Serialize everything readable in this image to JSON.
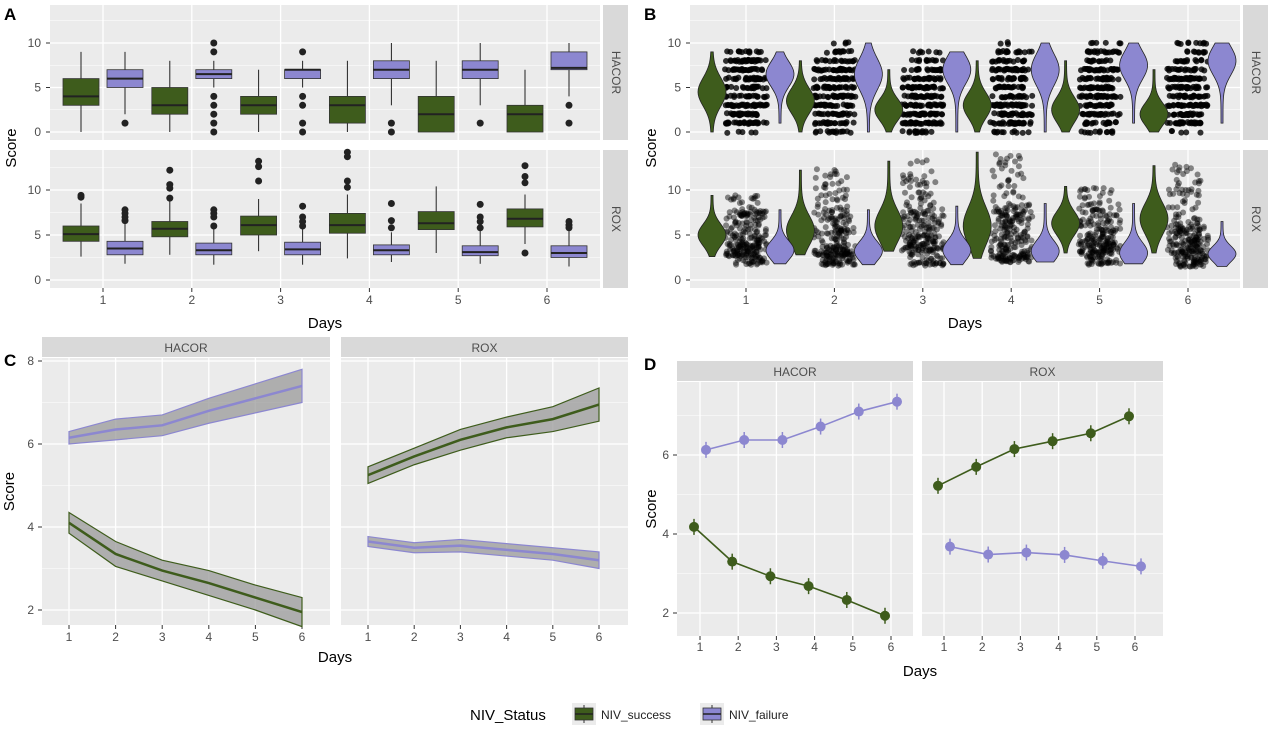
{
  "colors": {
    "success": "#3e5c1c",
    "failure": "#8c87d0",
    "panel_bg": "#ebebeb",
    "strip_bg": "#d9d9d9",
    "grid": "#ffffff"
  },
  "panel_labels": [
    "A",
    "B",
    "C",
    "D"
  ],
  "legend": {
    "title": "NIV_Status",
    "items": [
      "NIV_success",
      "NIV_failure"
    ]
  },
  "chart_data": [
    {
      "panel": "A",
      "type": "boxplot",
      "xlabel": "Days",
      "ylabel": "Score",
      "categories": [
        "1",
        "2",
        "3",
        "4",
        "5",
        "6"
      ],
      "facets": [
        {
          "name": "HACOR",
          "yticks": [
            "0",
            "5",
            "10"
          ],
          "ylim": [
            -0.5,
            14.5
          ],
          "series": [
            {
              "name": "NIV_success",
              "boxes": [
                {
                  "q1": 3,
                  "median": 4,
                  "q3": 6,
                  "min": 0,
                  "max": 9,
                  "outliers": []
                },
                {
                  "q1": 2,
                  "median": 3,
                  "q3": 5,
                  "min": 0,
                  "max": 8,
                  "outliers": []
                },
                {
                  "q1": 2,
                  "median": 3,
                  "q3": 4,
                  "min": 0,
                  "max": 7,
                  "outliers": []
                },
                {
                  "q1": 1,
                  "median": 3,
                  "q3": 4,
                  "min": 0,
                  "max": 8,
                  "outliers": []
                },
                {
                  "q1": 0,
                  "median": 2,
                  "q3": 4,
                  "min": 0,
                  "max": 8,
                  "outliers": []
                },
                {
                  "q1": 0,
                  "median": 2,
                  "q3": 3,
                  "min": 0,
                  "max": 7,
                  "outliers": []
                }
              ]
            },
            {
              "name": "NIV_failure",
              "boxes": [
                {
                  "q1": 5,
                  "median": 6,
                  "q3": 7,
                  "min": 2,
                  "max": 9,
                  "outliers": [
                    1
                  ]
                },
                {
                  "q1": 6,
                  "median": 6.5,
                  "q3": 7,
                  "min": 5,
                  "max": 8,
                  "outliers": [
                    0,
                    1,
                    2,
                    3,
                    4,
                    9,
                    10
                  ]
                },
                {
                  "q1": 6,
                  "median": 7,
                  "q3": 7,
                  "min": 5,
                  "max": 8,
                  "outliers": [
                    0,
                    1,
                    3,
                    4,
                    9
                  ]
                },
                {
                  "q1": 6,
                  "median": 7,
                  "q3": 8,
                  "min": 3,
                  "max": 10,
                  "outliers": [
                    0,
                    1
                  ]
                },
                {
                  "q1": 6,
                  "median": 7,
                  "q3": 8,
                  "min": 3,
                  "max": 10,
                  "outliers": [
                    1
                  ]
                },
                {
                  "q1": 7,
                  "median": 7.2,
                  "q3": 9,
                  "min": 4,
                  "max": 10,
                  "outliers": [
                    1,
                    3
                  ]
                }
              ]
            }
          ]
        },
        {
          "name": "ROX",
          "yticks": [
            "0",
            "5",
            "10"
          ],
          "ylim": [
            -0.5,
            14.5
          ],
          "series": [
            {
              "name": "NIV_success",
              "boxes": [
                {
                  "q1": 4.3,
                  "median": 5.1,
                  "q3": 6,
                  "min": 2.6,
                  "max": 8.5,
                  "outliers": [
                    9.2,
                    9.4
                  ]
                },
                {
                  "q1": 4.8,
                  "median": 5.7,
                  "q3": 6.5,
                  "min": 2.8,
                  "max": 9,
                  "outliers": [
                    9.1,
                    10.2,
                    10.6,
                    12.2
                  ]
                },
                {
                  "q1": 5,
                  "median": 6.1,
                  "q3": 7.1,
                  "min": 3.2,
                  "max": 9,
                  "outliers": [
                    11,
                    12.6,
                    13.2
                  ]
                },
                {
                  "q1": 5.2,
                  "median": 6.1,
                  "q3": 7.4,
                  "min": 2.4,
                  "max": 9.5,
                  "outliers": [
                    10.3,
                    11,
                    13.7,
                    14.2
                  ]
                },
                {
                  "q1": 5.6,
                  "median": 6.3,
                  "q3": 7.6,
                  "min": 3,
                  "max": 10.4,
                  "outliers": []
                },
                {
                  "q1": 5.9,
                  "median": 6.8,
                  "q3": 7.9,
                  "min": 4,
                  "max": 9.5,
                  "outliers": [
                    3,
                    10.8,
                    11.5,
                    12.7
                  ]
                }
              ]
            },
            {
              "name": "NIV_failure",
              "boxes": [
                {
                  "q1": 2.8,
                  "median": 3.5,
                  "q3": 4.3,
                  "min": 1.8,
                  "max": 6.3,
                  "outliers": [
                    6.6,
                    7,
                    7.4,
                    7.8
                  ]
                },
                {
                  "q1": 2.8,
                  "median": 3.3,
                  "q3": 4.1,
                  "min": 1.7,
                  "max": 5.8,
                  "outliers": [
                    6,
                    7,
                    7.4,
                    7.8
                  ]
                },
                {
                  "q1": 2.8,
                  "median": 3.4,
                  "q3": 4.2,
                  "min": 1.7,
                  "max": 5.8,
                  "outliers": [
                    6,
                    6.5,
                    7,
                    8.2
                  ]
                },
                {
                  "q1": 2.8,
                  "median": 3.3,
                  "q3": 3.9,
                  "min": 2,
                  "max": 5.3,
                  "outliers": [
                    5.8,
                    6.6,
                    8.5
                  ]
                },
                {
                  "q1": 2.7,
                  "median": 3.1,
                  "q3": 3.8,
                  "min": 1.8,
                  "max": 5.5,
                  "outliers": [
                    5.8,
                    6.5,
                    7,
                    8.4
                  ]
                },
                {
                  "q1": 2.5,
                  "median": 3,
                  "q3": 3.8,
                  "min": 1.5,
                  "max": 5.5,
                  "outliers": [
                    5.8,
                    6.1,
                    6.5
                  ]
                }
              ]
            }
          ]
        }
      ]
    },
    {
      "panel": "B",
      "type": "violin+jitter",
      "xlabel": "Days",
      "ylabel": "Score",
      "categories": [
        "1",
        "2",
        "3",
        "4",
        "5",
        "6"
      ],
      "facets": [
        {
          "name": "HACOR",
          "yticks": [
            "0",
            "5",
            "10"
          ],
          "series": [
            {
              "name": "NIV_success",
              "min": [
                0,
                0,
                0,
                0,
                0,
                0
              ],
              "max": [
                9,
                8,
                7,
                8,
                8,
                7
              ],
              "mode": [
                4.5,
                3.5,
                2.5,
                3,
                2.5,
                2
              ]
            },
            {
              "name": "NIV_failure",
              "min": [
                1,
                0,
                0,
                0,
                1,
                1
              ],
              "max": [
                9,
                10,
                9,
                10,
                10,
                10
              ],
              "mode": [
                6.5,
                6.5,
                7,
                7,
                7.5,
                8
              ]
            }
          ]
        },
        {
          "name": "ROX",
          "yticks": [
            "0",
            "5",
            "10"
          ],
          "series": [
            {
              "name": "NIV_success",
              "min": [
                2.6,
                2.8,
                3.2,
                2.4,
                3,
                3
              ],
              "max": [
                9.4,
                12.2,
                13.2,
                14.2,
                10.4,
                12.7
              ],
              "mode": [
                5,
                5.5,
                6,
                6,
                6.3,
                6.8
              ]
            },
            {
              "name": "NIV_failure",
              "min": [
                1.8,
                1.7,
                1.7,
                2,
                1.8,
                1.5
              ],
              "max": [
                7.8,
                7.8,
                8.2,
                8.5,
                8.5,
                6.5
              ],
              "mode": [
                3.3,
                3.2,
                3.3,
                3.2,
                3,
                2.9
              ]
            }
          ]
        }
      ]
    },
    {
      "panel": "C",
      "type": "line+ribbon",
      "xlabel": "Days",
      "ylabel": "Score",
      "x": [
        1,
        2,
        3,
        4,
        5,
        6
      ],
      "yticks": [
        "2",
        "4",
        "6",
        "8"
      ],
      "ylim": [
        1.4,
        8.1
      ],
      "facets": [
        {
          "name": "HACOR",
          "series": [
            {
              "name": "NIV_success",
              "y": [
                4.1,
                3.35,
                2.95,
                2.65,
                2.3,
                1.95
              ],
              "ci": [
                0.25,
                0.3,
                0.25,
                0.3,
                0.3,
                0.35
              ]
            },
            {
              "name": "NIV_failure",
              "y": [
                6.15,
                6.35,
                6.45,
                6.8,
                7.1,
                7.4
              ],
              "ci": [
                0.15,
                0.25,
                0.25,
                0.3,
                0.35,
                0.4
              ]
            }
          ]
        },
        {
          "name": "ROX",
          "series": [
            {
              "name": "NIV_success",
              "y": [
                5.25,
                5.7,
                6.1,
                6.4,
                6.6,
                6.95
              ],
              "ci": [
                0.2,
                0.2,
                0.25,
                0.25,
                0.3,
                0.4
              ]
            },
            {
              "name": "NIV_failure",
              "y": [
                3.65,
                3.5,
                3.55,
                3.45,
                3.35,
                3.2
              ],
              "ci": [
                0.12,
                0.12,
                0.15,
                0.15,
                0.15,
                0.2
              ]
            }
          ]
        }
      ]
    },
    {
      "panel": "D",
      "type": "line+points",
      "xlabel": "Days",
      "ylabel": "Score",
      "x": [
        1,
        2,
        3,
        4,
        5,
        6
      ],
      "yticks": [
        "2",
        "4",
        "6"
      ],
      "ylim": [
        1.4,
        7.8
      ],
      "facets": [
        {
          "name": "HACOR",
          "series": [
            {
              "name": "NIV_success",
              "y": [
                4.18,
                3.3,
                2.93,
                2.68,
                2.33,
                1.93
              ]
            },
            {
              "name": "NIV_failure",
              "y": [
                6.13,
                6.38,
                6.38,
                6.72,
                7.1,
                7.35
              ]
            }
          ]
        },
        {
          "name": "ROX",
          "series": [
            {
              "name": "NIV_success",
              "y": [
                5.22,
                5.7,
                6.15,
                6.35,
                6.55,
                6.98
              ]
            },
            {
              "name": "NIV_failure",
              "y": [
                3.68,
                3.48,
                3.53,
                3.47,
                3.32,
                3.18
              ]
            }
          ]
        }
      ]
    }
  ]
}
